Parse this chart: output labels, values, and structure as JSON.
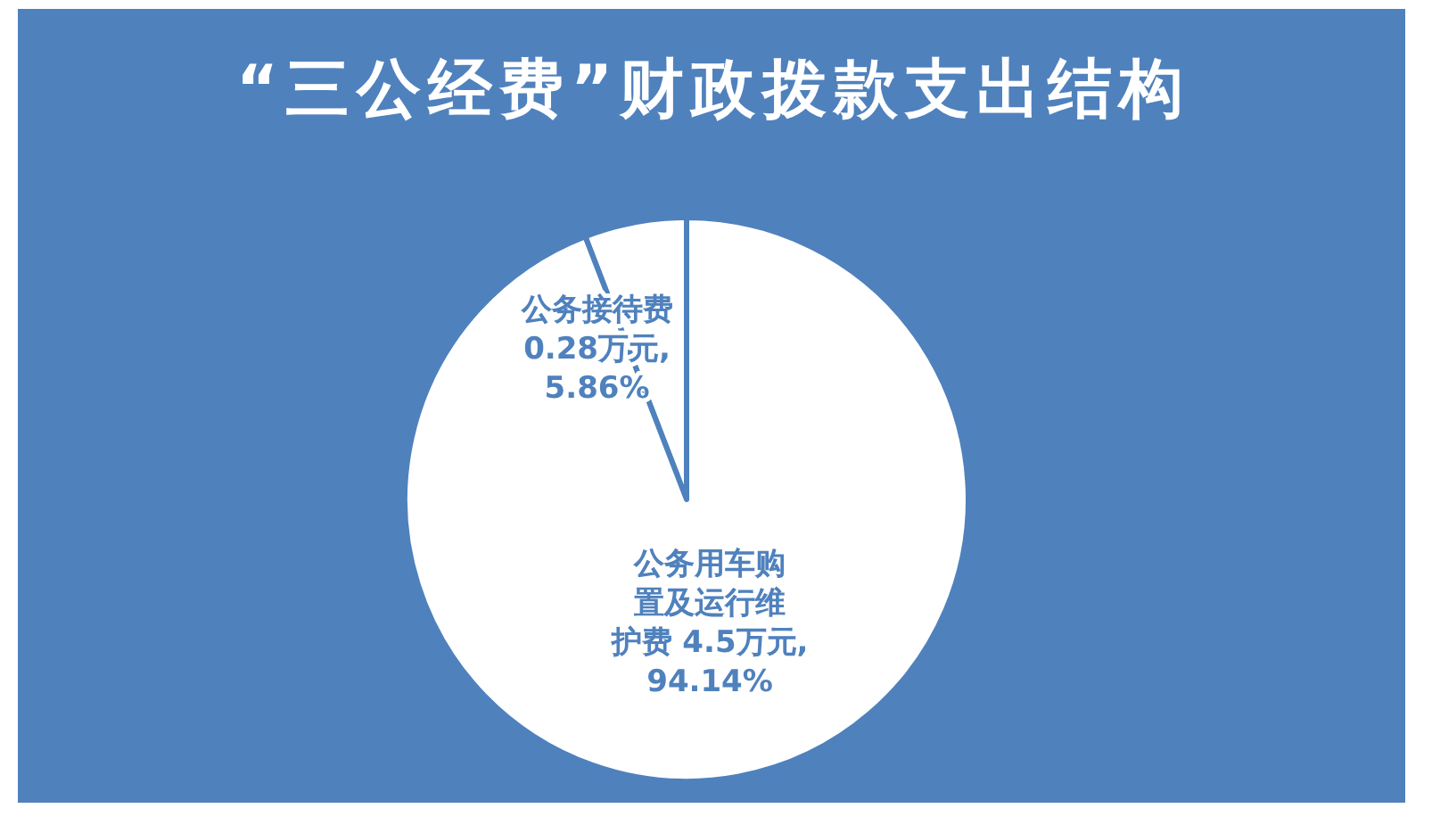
{
  "chart_data": {
    "type": "pie",
    "title": "“三公经费”财政拨款支出结构",
    "categories": [
      "公务接待费",
      "公务用车购置及运行维护费"
    ],
    "values": [
      0.28,
      4.5
    ],
    "colors": [
      "#ffffff",
      "#ffffff"
    ],
    "value_labels": [
      "0.28万元, 5.86%",
      "4.5万元, 94.14%"
    ],
    "legend": false
  }
}
